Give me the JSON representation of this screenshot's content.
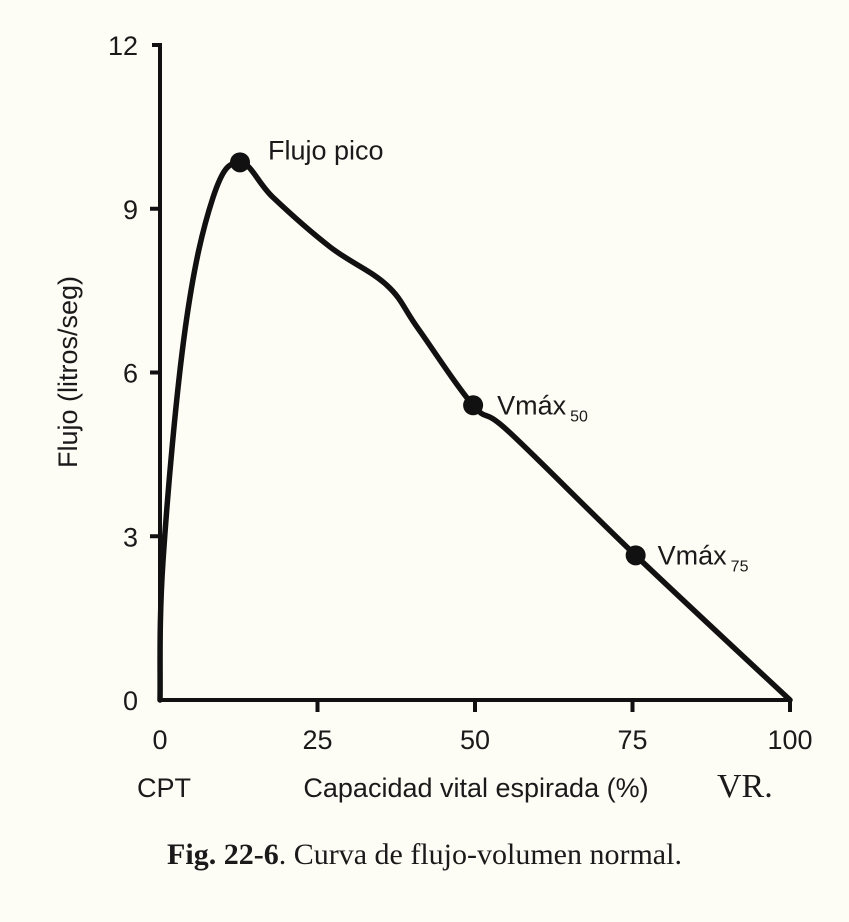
{
  "chart_data": {
    "type": "line",
    "title": "",
    "xlabel": "Capacidad vital espirada (%)",
    "ylabel": "Flujo (litros/seg)",
    "xlim": [
      0,
      100
    ],
    "ylim": [
      0,
      12
    ],
    "x_ticks": [
      "0",
      "25",
      "50",
      "75",
      "100"
    ],
    "y_ticks": [
      "0",
      "3",
      "6",
      "9",
      "12"
    ],
    "x_left_label": "CPT",
    "x_right_label": "VR.",
    "grid": false,
    "legend": null,
    "series": [
      {
        "name": "Curva de flujo-volumen normal",
        "x": [
          0,
          0.5,
          4,
          8.4,
          12.7,
          18,
          27,
          36,
          41,
          49.7,
          55.5,
          75.5,
          100
        ],
        "y": [
          0,
          2.6,
          6.8,
          9.2,
          9.85,
          9.2,
          8.3,
          7.6,
          6.8,
          5.4,
          4.9,
          2.65,
          0
        ]
      }
    ],
    "annotations": [
      {
        "label": "Flujo pico",
        "subscript": "",
        "x": 12.7,
        "y": 9.85
      },
      {
        "label": "Vmáx",
        "subscript": "50",
        "x": 49.7,
        "y": 5.4
      },
      {
        "label": "Vmáx",
        "subscript": "75",
        "x": 75.5,
        "y": 2.65
      }
    ]
  },
  "caption": {
    "label": "Fig. 22-6",
    "text": ". Curva de flujo-volumen normal."
  }
}
